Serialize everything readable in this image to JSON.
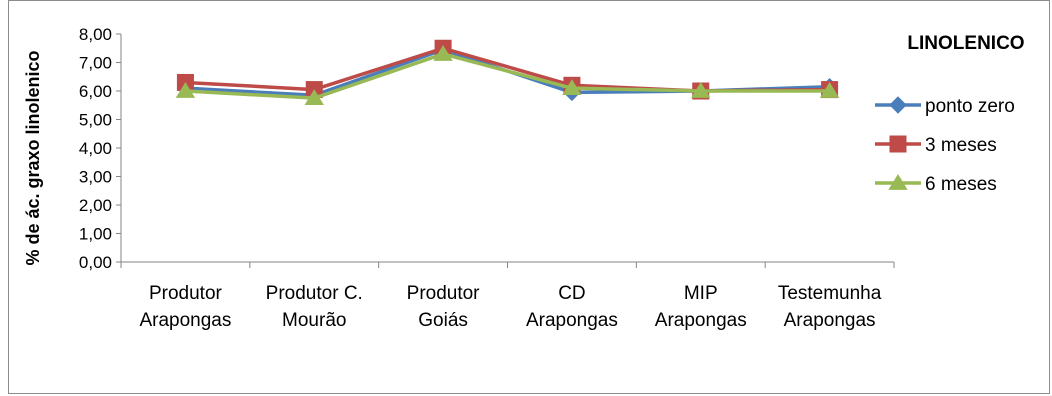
{
  "chart_data": {
    "type": "line",
    "title": "LINOLENICO",
    "ylabel": "% de ác. graxo linolenico",
    "xlabel": "",
    "ylim": [
      0,
      8
    ],
    "yticks": [
      "0,00",
      "1,00",
      "2,00",
      "3,00",
      "4,00",
      "5,00",
      "6,00",
      "7,00",
      "8,00"
    ],
    "categories": [
      [
        "Produtor",
        "Arapongas"
      ],
      [
        "Produtor C.",
        "Mourão"
      ],
      [
        "Produtor",
        "Goiás"
      ],
      [
        "CD",
        "Arapongas"
      ],
      [
        "MIP",
        "Arapongas"
      ],
      [
        "Testemunha",
        "Arapongas"
      ]
    ],
    "series": [
      {
        "name": "ponto zero",
        "color": "#4a7ebb",
        "marker": "diamond",
        "values": [
          6.1,
          5.85,
          7.45,
          5.95,
          6.0,
          6.15
        ]
      },
      {
        "name": "3 meses",
        "color": "#be4b48",
        "marker": "square",
        "values": [
          6.3,
          6.05,
          7.5,
          6.2,
          6.0,
          6.05
        ]
      },
      {
        "name": "6 meses",
        "color": "#98b954",
        "marker": "triangle",
        "values": [
          6.0,
          5.75,
          7.3,
          6.1,
          6.0,
          6.0
        ]
      }
    ],
    "grid": false,
    "legend": "right"
  }
}
